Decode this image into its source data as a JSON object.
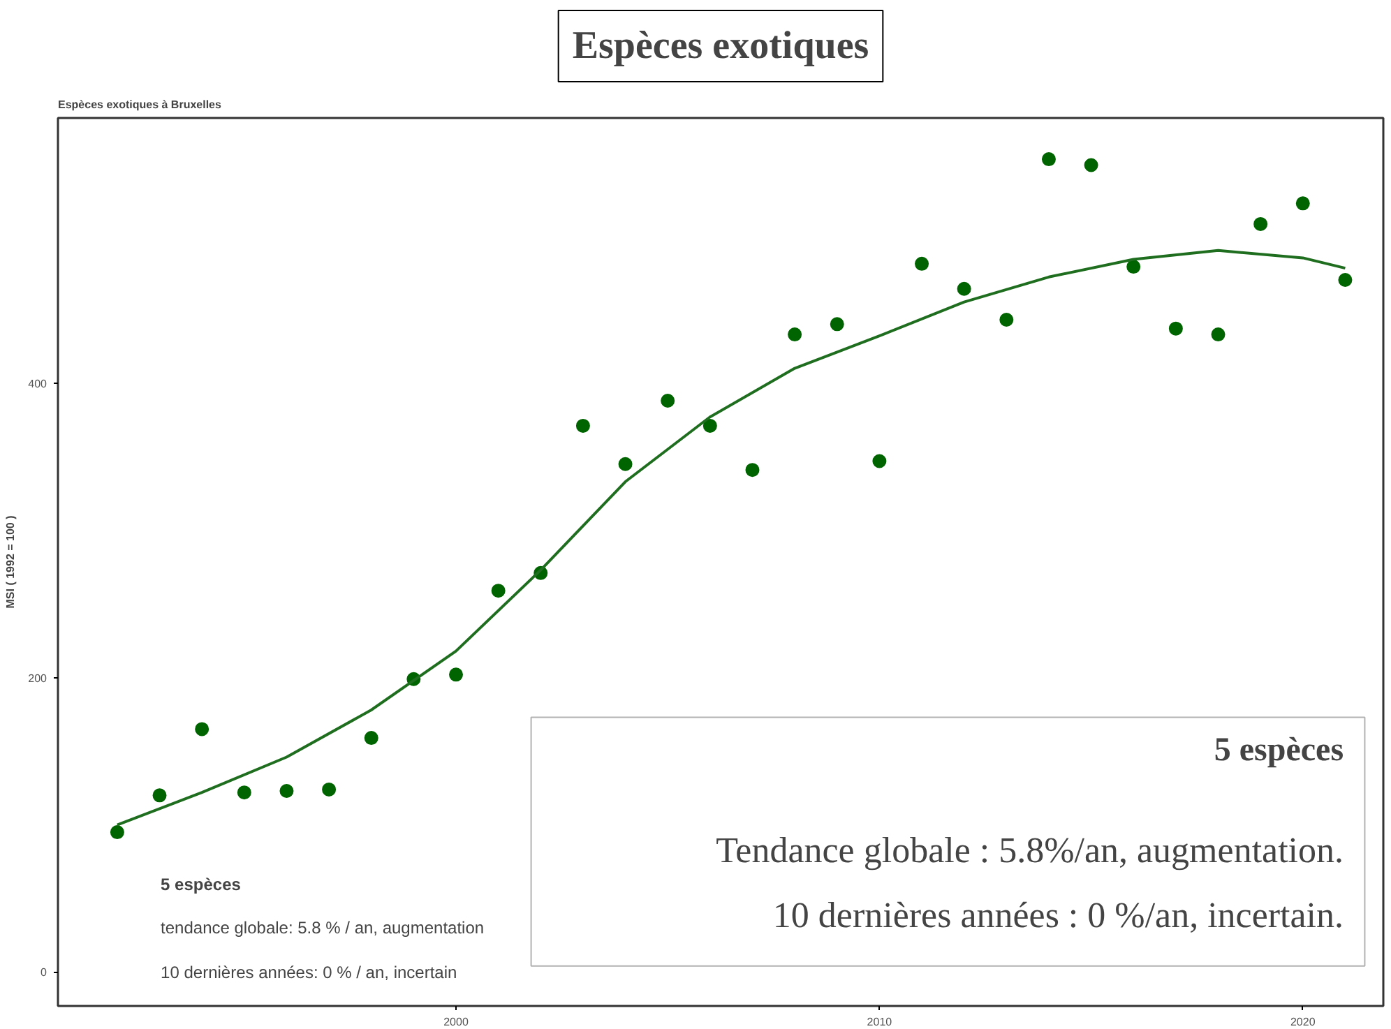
{
  "chart_data": {
    "type": "scatter",
    "title": "Espèces exotiques",
    "subtitle": "Espèces exotiques à Bruxelles",
    "ylabel": "MSI ( 1992 = 100 )",
    "x": [
      1992,
      1993,
      1994,
      1995,
      1996,
      1997,
      1998,
      1999,
      2000,
      2001,
      2002,
      2003,
      2004,
      2005,
      2006,
      2007,
      2008,
      2009,
      2010,
      2011,
      2012,
      2013,
      2014,
      2015,
      2016,
      2017,
      2018,
      2019,
      2020,
      2021
    ],
    "series": [
      {
        "color": "#006400",
        "marker": "circle",
        "values": [
          95,
          120,
          165,
          122,
          123,
          124,
          159,
          199,
          202,
          259,
          271,
          371,
          345,
          388,
          371,
          341,
          433,
          440,
          347,
          481,
          464,
          443,
          552,
          548,
          479,
          437,
          433,
          508,
          522,
          470
        ]
      },
      {
        "type": "line",
        "color": "#1f6e1f",
        "line_style": "solid",
        "x": [
          1992,
          1994,
          1996,
          1998,
          2000,
          2002,
          2004,
          2006,
          2008,
          2010,
          2012,
          2014,
          2016,
          2018,
          2020,
          2021
        ],
        "values": [
          100,
          122,
          146,
          178,
          218,
          273,
          333,
          377,
          410,
          432,
          455,
          472,
          484,
          490,
          485,
          478
        ]
      }
    ],
    "xlim": [
      1990.6,
      2021.9
    ],
    "ylim": [
      -23,
      580
    ],
    "xticks": [
      2000,
      2010,
      2020
    ],
    "yticks": [
      0,
      200,
      400
    ],
    "grid": false,
    "annotations": [
      "5 espèces",
      "tendance globale: 5.8 % / an, augmentation",
      "10 dernières années: 0 % / an, incertain",
      "5 espèces",
      "Tendance globale : 5.8%/an, augmentation.",
      "10 dernières années : 0 %/an, incertain."
    ]
  }
}
